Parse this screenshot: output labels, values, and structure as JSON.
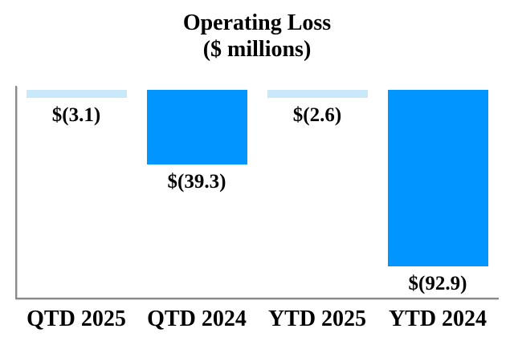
{
  "chart": {
    "title": "Operating Loss",
    "subtitle": "($ millions)"
  },
  "chart_data": {
    "type": "bar",
    "title": "Operating Loss",
    "subtitle": "($ millions)",
    "categories": [
      "QTD 2025",
      "QTD 2024",
      "YTD 2025",
      "YTD 2024"
    ],
    "values": [
      -3.1,
      -39.3,
      -2.6,
      -92.9
    ],
    "data_labels": [
      "$(3.1)",
      "$(39.3)",
      "$(2.6)",
      "$(92.9)"
    ],
    "bar_colors": [
      "#C9E8FA",
      "#0095FF",
      "#C9E8FA",
      "#0095FF"
    ],
    "xlabel": "",
    "ylabel": "",
    "ylim": [
      -100,
      0
    ],
    "baseline": 0,
    "grid": false,
    "legend": false,
    "orientation": "vertical",
    "bars_grow": "downward-from-zero"
  },
  "colors": {
    "highlight_blue": "#0095FF",
    "light_blue": "#C9E8FA",
    "axis_gray": "#8a8a8a",
    "text_black": "#000000",
    "background": "#FFFFFF"
  }
}
